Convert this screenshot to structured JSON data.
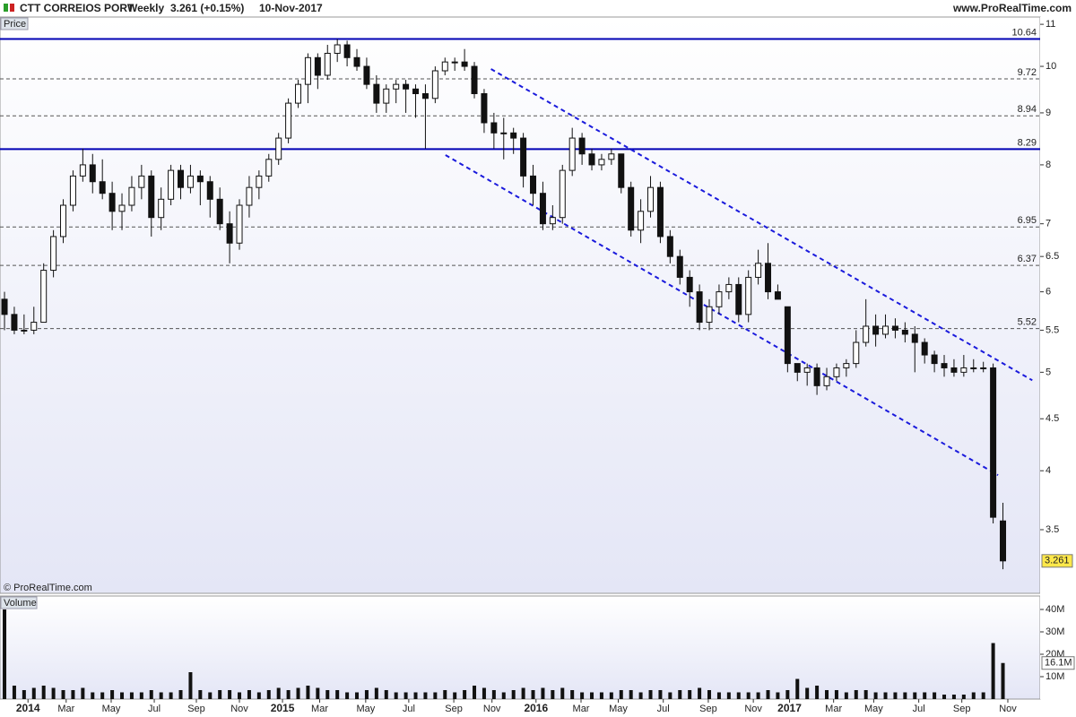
{
  "header": {
    "title": "CTT CORREIOS PORT",
    "period": "Weekly",
    "quote": "3.261 (+0.15%)",
    "date": "10-Nov-2017",
    "site": "www.ProRealTime.com",
    "copyright": "© ProRealTime.com"
  },
  "chart_data": [
    {
      "type": "candlestick",
      "panel_label": "Price",
      "log_scale": true,
      "xlim": [
        -0.46,
        105.8
      ],
      "ylim": [
        3.03,
        11.16
      ],
      "yticks": [
        3.5,
        4,
        4.5,
        5,
        5.5,
        6,
        6.5,
        7,
        8,
        9,
        10,
        11
      ],
      "up_color": "#ffffff",
      "down_color": "#111111",
      "open": [
        5.9,
        5.7,
        5.5,
        5.5,
        5.6,
        6.3,
        6.8,
        7.3,
        7.8,
        8.0,
        7.7,
        7.5,
        7.2,
        7.3,
        7.6,
        7.8,
        7.1,
        7.4,
        7.9,
        7.6,
        7.8,
        7.7,
        7.4,
        7.0,
        6.7,
        7.3,
        7.6,
        7.8,
        8.1,
        8.5,
        9.2,
        9.6,
        10.2,
        9.8,
        10.3,
        10.5,
        10.2,
        10.0,
        9.6,
        9.2,
        9.5,
        9.6,
        9.5,
        9.4,
        9.3,
        9.9,
        10.1,
        10.1,
        10.0,
        9.4,
        8.8,
        8.6,
        8.6,
        8.5,
        7.8,
        7.5,
        7.0,
        7.1,
        7.9,
        8.5,
        8.2,
        8.0,
        8.1,
        8.2,
        7.6,
        6.9,
        7.2,
        7.6,
        6.8,
        6.5,
        6.2,
        6.0,
        5.6,
        5.8,
        6.0,
        6.1,
        5.7,
        6.2,
        6.4,
        6.0,
        5.8,
        5.1,
        5.0,
        5.05,
        4.85,
        4.95,
        5.05,
        5.1,
        5.35,
        5.55,
        5.45,
        5.55,
        5.5,
        5.45,
        5.35,
        5.2,
        5.1,
        5.05,
        5.0,
        5.05,
        5.05,
        5.05,
        3.57
      ],
      "high": [
        6.0,
        5.8,
        5.7,
        5.8,
        6.4,
        6.9,
        7.4,
        7.9,
        8.3,
        8.2,
        8.1,
        7.7,
        7.5,
        7.8,
        8.0,
        7.9,
        7.6,
        8.0,
        8.0,
        8.0,
        7.9,
        7.8,
        7.6,
        7.2,
        7.4,
        7.8,
        7.9,
        8.2,
        8.6,
        9.3,
        9.7,
        10.3,
        10.3,
        10.5,
        10.64,
        10.6,
        10.4,
        10.2,
        9.8,
        9.6,
        9.7,
        9.7,
        9.6,
        9.6,
        10.0,
        10.2,
        10.2,
        10.4,
        10.1,
        9.5,
        9.0,
        8.9,
        8.7,
        8.6,
        8.0,
        7.7,
        7.3,
        8.0,
        8.7,
        8.6,
        8.3,
        8.2,
        8.3,
        8.2,
        7.7,
        7.4,
        7.8,
        7.7,
        6.9,
        6.6,
        6.3,
        6.1,
        5.9,
        6.1,
        6.2,
        6.2,
        6.3,
        6.6,
        6.7,
        6.1,
        5.8,
        5.1,
        5.1,
        5.1,
        5.05,
        5.1,
        5.15,
        5.5,
        5.9,
        5.7,
        5.7,
        5.65,
        5.6,
        5.55,
        5.4,
        5.25,
        5.2,
        5.15,
        5.2,
        5.15,
        5.12,
        5.1,
        3.72
      ],
      "low": [
        5.5,
        5.45,
        5.45,
        5.45,
        5.6,
        6.2,
        6.7,
        7.2,
        7.7,
        7.5,
        7.4,
        6.9,
        6.9,
        7.2,
        7.4,
        6.8,
        6.9,
        7.3,
        7.4,
        7.5,
        7.3,
        7.1,
        6.9,
        6.4,
        6.6,
        7.1,
        7.4,
        7.7,
        8.0,
        8.4,
        9.1,
        9.2,
        9.5,
        9.7,
        10.1,
        10.0,
        9.9,
        9.5,
        9.0,
        9.0,
        9.2,
        9.0,
        8.9,
        8.3,
        9.2,
        9.8,
        9.9,
        9.9,
        9.3,
        8.6,
        8.3,
        8.1,
        8.2,
        7.6,
        7.3,
        6.9,
        6.9,
        7.0,
        7.8,
        8.0,
        7.9,
        7.9,
        8.0,
        7.5,
        6.8,
        6.7,
        7.1,
        6.7,
        6.4,
        6.1,
        5.8,
        5.5,
        5.5,
        5.7,
        5.9,
        5.6,
        5.6,
        6.1,
        5.9,
        5.9,
        5.0,
        4.9,
        4.85,
        4.75,
        4.8,
        4.9,
        4.95,
        5.05,
        5.3,
        5.3,
        5.4,
        5.4,
        5.35,
        5.0,
        5.1,
        5.0,
        4.95,
        4.95,
        4.95,
        5.0,
        5.0,
        3.55,
        3.2
      ],
      "close": [
        5.7,
        5.5,
        5.5,
        5.6,
        6.3,
        6.8,
        7.3,
        7.8,
        8.0,
        7.7,
        7.5,
        7.2,
        7.3,
        7.6,
        7.8,
        7.1,
        7.4,
        7.9,
        7.6,
        7.8,
        7.7,
        7.4,
        7.0,
        6.7,
        7.3,
        7.6,
        7.8,
        8.1,
        8.5,
        9.2,
        9.6,
        10.2,
        9.8,
        10.3,
        10.5,
        10.2,
        10.0,
        9.6,
        9.2,
        9.5,
        9.6,
        9.5,
        9.4,
        9.3,
        9.9,
        10.1,
        10.1,
        10.0,
        9.4,
        8.8,
        8.6,
        8.6,
        8.5,
        7.8,
        7.5,
        7.0,
        7.1,
        7.9,
        8.5,
        8.2,
        8.0,
        8.1,
        8.2,
        7.6,
        6.9,
        7.2,
        7.6,
        6.8,
        6.5,
        6.2,
        6.0,
        5.6,
        5.8,
        6.0,
        6.1,
        5.7,
        6.2,
        6.4,
        6.0,
        5.9,
        5.1,
        5.0,
        5.05,
        4.85,
        4.95,
        5.05,
        5.1,
        5.35,
        5.55,
        5.45,
        5.55,
        5.5,
        5.45,
        5.35,
        5.2,
        5.1,
        5.05,
        5.0,
        5.05,
        5.05,
        5.05,
        3.6,
        3.261
      ],
      "levels": [
        {
          "value": 10.64,
          "style": "solid"
        },
        {
          "value": 9.72,
          "style": "dashed"
        },
        {
          "value": 8.94,
          "style": "dashed"
        },
        {
          "value": 8.29,
          "style": "solid"
        },
        {
          "value": 6.95,
          "style": "dashed"
        },
        {
          "value": 6.37,
          "style": "dashed"
        },
        {
          "value": 5.52,
          "style": "dashed"
        }
      ],
      "level_colors": {
        "solid": "#0000b4",
        "dashed": "#555555"
      },
      "trendlines": [
        {
          "x": [
            49.7,
            105.0
          ],
          "y": [
            9.94,
            4.91
          ],
          "color": "#1a1adc"
        },
        {
          "x": [
            45.05,
            101.5
          ],
          "y": [
            8.18,
            3.96
          ],
          "color": "#1a1adc"
        }
      ]
    },
    {
      "type": "bar",
      "panel_label": "Volume",
      "xlim": [
        -0.46,
        105.8
      ],
      "ylim": [
        0,
        44.8
      ],
      "color": "#111111",
      "yticks": [
        {
          "value": 10,
          "label": "10M"
        },
        {
          "value": 20,
          "label": "20M"
        },
        {
          "value": 30,
          "label": "30M"
        },
        {
          "value": 40,
          "label": "40M"
        }
      ],
      "last_value_label": "16.1M",
      "xticks": [
        {
          "value": 2.4,
          "label": "2014"
        },
        {
          "value": 6.3,
          "label": "Mar"
        },
        {
          "value": 10.9,
          "label": "May"
        },
        {
          "value": 15.3,
          "label": "Jul"
        },
        {
          "value": 19.6,
          "label": "Sep"
        },
        {
          "value": 24.0,
          "label": "Nov"
        },
        {
          "value": 28.4,
          "label": "2015"
        },
        {
          "value": 32.2,
          "label": "Mar"
        },
        {
          "value": 36.9,
          "label": "May"
        },
        {
          "value": 41.3,
          "label": "Jul"
        },
        {
          "value": 45.9,
          "label": "Sep"
        },
        {
          "value": 49.8,
          "label": "Nov"
        },
        {
          "value": 54.3,
          "label": "2016"
        },
        {
          "value": 58.9,
          "label": "Mar"
        },
        {
          "value": 62.7,
          "label": "May"
        },
        {
          "value": 67.3,
          "label": "Jul"
        },
        {
          "value": 71.9,
          "label": "Sep"
        },
        {
          "value": 76.5,
          "label": "Nov"
        },
        {
          "value": 80.2,
          "label": "2017"
        },
        {
          "value": 84.7,
          "label": "Mar"
        },
        {
          "value": 88.8,
          "label": "May"
        },
        {
          "value": 93.4,
          "label": "Jul"
        },
        {
          "value": 97.8,
          "label": "Sep"
        },
        {
          "value": 102.5,
          "label": "Nov"
        }
      ],
      "values": [
        40,
        6,
        4,
        5,
        6,
        5,
        4,
        4,
        5,
        3,
        3,
        4,
        3,
        3,
        3,
        4,
        3,
        3,
        4,
        12,
        4,
        3,
        4,
        4,
        3,
        4,
        3,
        4,
        5,
        4,
        5,
        6,
        5,
        4,
        4,
        3,
        3,
        4,
        5,
        4,
        3,
        3,
        3,
        3,
        3,
        4,
        3,
        4,
        6,
        5,
        4,
        3,
        4,
        5,
        4,
        5,
        4,
        5,
        4,
        3,
        3,
        3,
        3,
        4,
        4,
        3,
        4,
        4,
        3,
        4,
        4,
        5,
        4,
        3,
        3,
        3,
        3,
        3,
        4,
        3,
        4,
        9,
        5,
        6,
        4,
        4,
        3,
        4,
        4,
        3,
        3,
        3,
        3,
        3,
        3,
        3,
        2,
        2,
        2,
        3,
        3,
        25,
        16.1
      ]
    }
  ]
}
